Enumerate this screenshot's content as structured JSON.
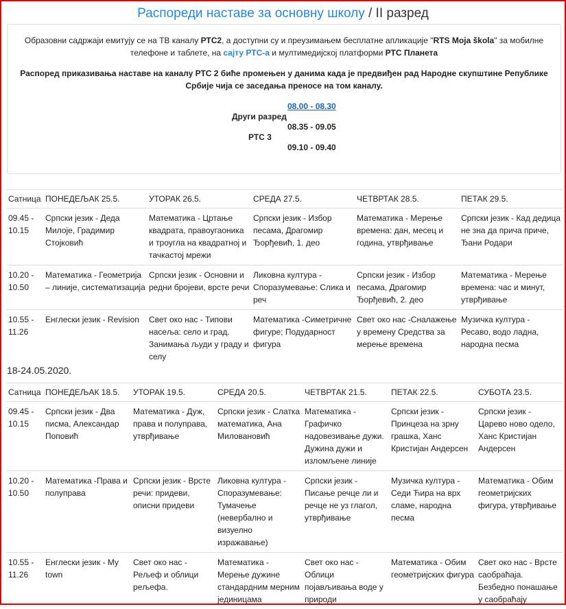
{
  "header": {
    "title_link": "Распореди наставе за основну школу",
    "title_rest": " / II разред"
  },
  "info": {
    "p1_a": "Образовни садржаји емитују се на ТВ каналу ",
    "p1_b": "РТС2",
    "p1_c": ", а доступни су и преузимањем бесплатне апликације \"",
    "p1_d": "RTS Moja škola",
    "p1_e": "\" за мобилне телефоне и таблете, на ",
    "p1_link": "сајту РТС-а",
    "p1_f": " и мултимедијској платформи ",
    "p1_g": "РТС Планета",
    "p2": "Распоред приказивања наставе на каналу РТС 2 биће промењен у данима када је предвиђен рад Народне скупштине Републике Србије чија се заседања преносе на том каналу.",
    "time1": "08.00 - 08.30",
    "label1": "Други разред",
    "time2": "08.35 - 09.05",
    "label2": "РТС 3",
    "time3": "09.10 - 09.40"
  },
  "table1": {
    "headers": [
      "Сатница",
      "ПОНЕДЕЉАК 25.5.",
      "УТОРАК 26.5.",
      "СРЕДА 27.5.",
      "ЧЕТВРТАК 28.5.",
      "ПЕТАК 29.5."
    ],
    "rows": [
      [
        "09.45 - 10.15",
        "Српски језик - Деда Милоје, Градимир Стојковић",
        "Математика - Цртање квадрата, правоугаоника и троугла на квадратној и тачкастој мрежи",
        "Српски језик -  Избор песама, Драгомир Ђорђевић, 1. део",
        "Математика - Мерење времена: дан, месец и година, утврђивање",
        "Српски језик - Кад дедица не зна да прича приче, Ђани Родари"
      ],
      [
        "10.20 - 10.50",
        "Математика - Геометрија – линије, систематизација",
        "Српски језик - Основни и редни бројеви, врсте речи",
        "Ликовна култура - Споразумевање: Слика и реч",
        "Српски језик - Избор песама, Драгомир Ђорђевић, 2. део",
        "Математика - Мерење времена: час и минут, утврђивање"
      ],
      [
        "10.55 - 11.26",
        "Енглески језик -  Revision",
        "Свет око нас - Типови насеља: село и град. Занимања људи у граду и селу",
        "Математика -Симетричне фигуре; Подударност фигура",
        "Свет око нас -Сналажење у времену  Средства за мерење времена",
        "Музичка култура - Ресаво, водо ладна, народна песма"
      ]
    ]
  },
  "week2_label": "18-24.05.2020.",
  "table2": {
    "headers": [
      "Сатница",
      "ПОНЕДЕЉАК 18.5.",
      "УТОРАК 19.5.",
      "СРЕДА 20.5.",
      "ЧЕТВРТАК 21.5.",
      "ПЕТАК 22.5.",
      "СУБОТА 23.5."
    ],
    "rows": [
      [
        "09.45 - 10.15",
        "Српски језик - Два писма, Александар Поповић",
        " Математика - Дуж, права и полуправа, утврђивање",
        "Српски језик - Слатка математика, Ана Миловановић",
        "Математика - Графичко надовезивање дужи. Дужина дужи и изломљене линије",
        "Српски језик - Принцеза на зрну грашка,  Ханс Кристијан Андерсен",
        "Српски језик - Царево ново одело, Ханс Кристијан Андерсен"
      ],
      [
        "10.20 - 10.50",
        "Математика -Права и полуправа",
        "Српски језик -  Врсте речи: придеви, описни придеви",
        "Ликовна култура - Споразумевање: Тумачење (невербално и визуелно изражавање)",
        "Српски језик - Писање речце ли и речце не уз глагол, утврђивање",
        "Музичка култура - Седи Ћира на врх сламе, народна песма",
        "Математика - Обим геометријских фигура, утврђивање"
      ],
      [
        "10.55 - 11.26",
        "Енглески језик - My town",
        "Свет око нас - Рељеф и облици рељефа.",
        "Математика - Мерење дужине стандардним мерним јединицама",
        "Свет око нас - Облици појављивања воде у природи",
        "Математика - Обим геометријских фигура",
        "Свет око нас - Врсте саобраћаја. Безбедно понашање у саобраћају"
      ]
    ]
  }
}
